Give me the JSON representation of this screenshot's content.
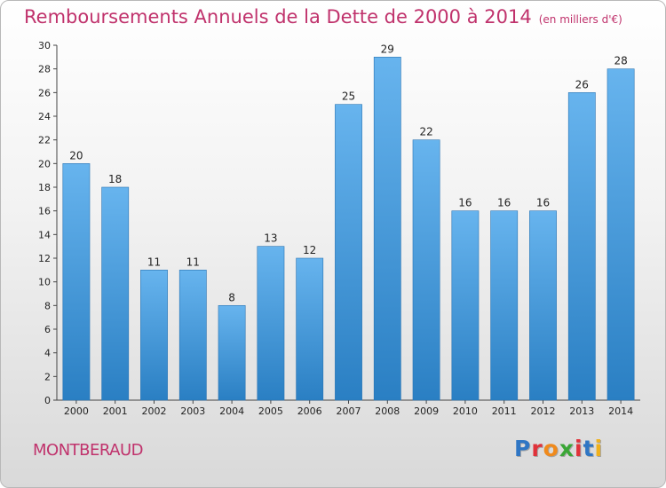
{
  "header": {
    "title": "Remboursements Annuels de la Dette de 2000 à 2014",
    "unit": "(en milliers d'€)"
  },
  "footer": {
    "commune": "MONTBERAUD",
    "logo": {
      "letters": [
        "P",
        "r",
        "o",
        "x",
        "i",
        "t",
        "i"
      ],
      "colors": [
        "#2f76c4",
        "#e0323a",
        "#f08a1c",
        "#3aa636",
        "#e0323a",
        "#2f76c4",
        "#f0b11c"
      ]
    }
  },
  "colors": {
    "bar_light": "#67b4ee",
    "bar_dark": "#2a7fc3",
    "title": "#c0326c"
  },
  "chart_data": {
    "type": "bar",
    "title": "Remboursements Annuels de la Dette de 2000 à 2014",
    "subtitle": "(en milliers d'€)",
    "xlabel": "",
    "ylabel": "",
    "categories": [
      "2000",
      "2001",
      "2002",
      "2003",
      "2004",
      "2005",
      "2006",
      "2007",
      "2008",
      "2009",
      "2010",
      "2011",
      "2012",
      "2013",
      "2014"
    ],
    "values": [
      20,
      18,
      11,
      11,
      8,
      13,
      12,
      25,
      29,
      22,
      16,
      16,
      16,
      26,
      28
    ],
    "ylim": [
      0,
      30
    ],
    "yticks": [
      0,
      2,
      4,
      6,
      8,
      10,
      12,
      14,
      16,
      18,
      20,
      22,
      24,
      26,
      28,
      30
    ],
    "grid": false,
    "legend": "none"
  }
}
